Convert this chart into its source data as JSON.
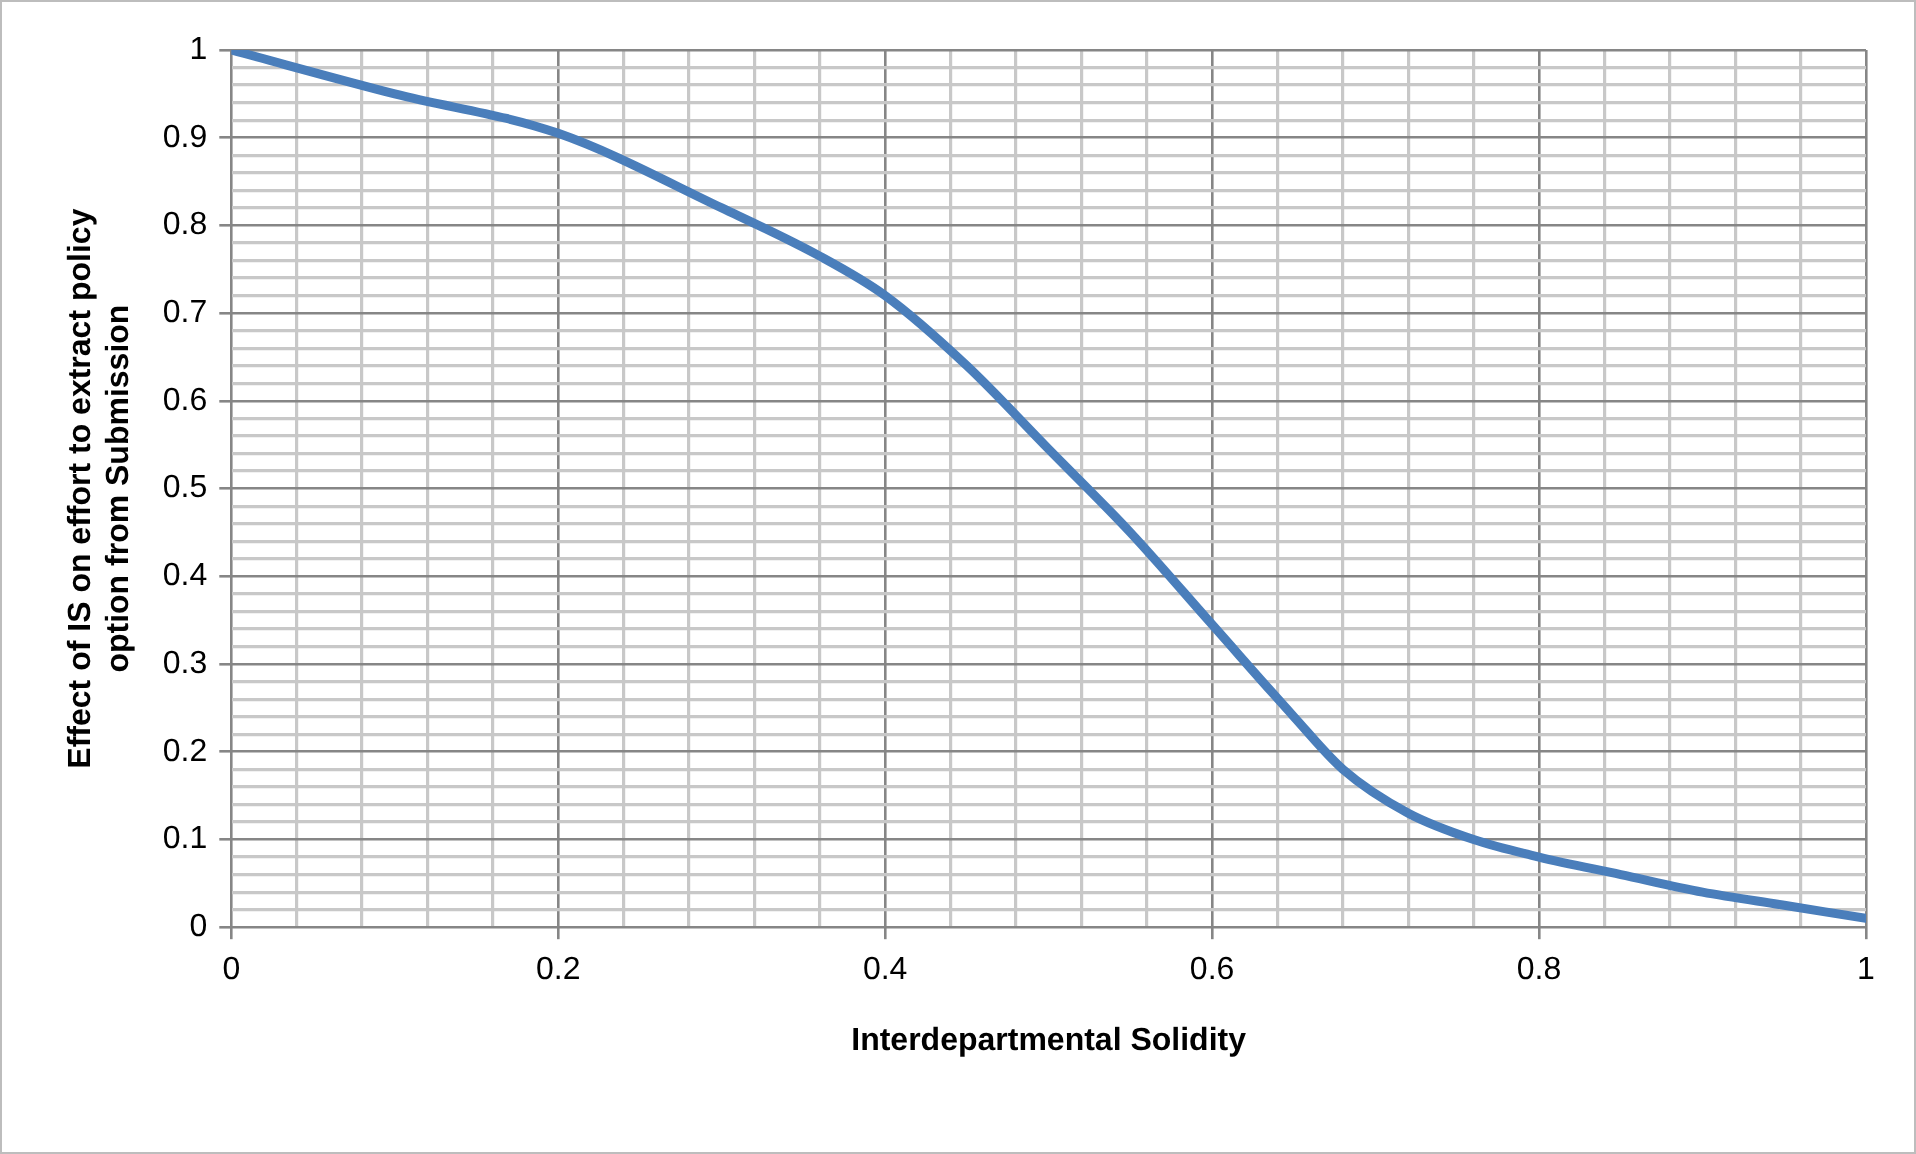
{
  "chart_data": {
    "type": "line",
    "xlabel": "Interdepartmental Solidity",
    "ylabel": "Effect of IS on effort to extract policy\noption from Submission",
    "series": [
      {
        "color": "#4a7ebb",
        "x": [
          0,
          0.1,
          0.2,
          0.3,
          0.36,
          0.4,
          0.45,
          0.5,
          0.55,
          0.6,
          0.65,
          0.68,
          0.72,
          0.76,
          0.8,
          0.85,
          0.9,
          0.95,
          1
        ],
        "values": [
          1,
          0.95,
          0.905,
          0.82,
          0.765,
          0.72,
          0.64,
          0.545,
          0.45,
          0.345,
          0.24,
          0.18,
          0.13,
          0.1,
          0.08,
          0.06,
          0.04,
          0.025,
          0.01
        ]
      }
    ],
    "xlim": [
      0,
      1
    ],
    "ylim": [
      0,
      1
    ],
    "xticks": [
      0,
      {
        "value": 0.04,
        "label": null
      },
      {
        "value": 0.08,
        "label": null
      },
      {
        "value": 0.12,
        "label": null
      },
      {
        "value": 0.16,
        "label": null
      },
      0.2,
      {
        "value": 0.24,
        "label": null
      },
      {
        "value": 0.28,
        "label": null
      },
      {
        "value": 0.32,
        "label": null
      },
      {
        "value": 0.36,
        "label": null
      },
      0.4,
      {
        "value": 0.44,
        "label": null
      },
      {
        "value": 0.48,
        "label": null
      },
      {
        "value": 0.52,
        "label": null
      },
      {
        "value": 0.56,
        "label": null
      },
      0.6,
      {
        "value": 0.64,
        "label": null
      },
      {
        "value": 0.68,
        "label": null
      },
      {
        "value": 0.72,
        "label": null
      },
      {
        "value": 0.76,
        "label": null
      },
      0.8,
      {
        "value": 0.84,
        "label": null
      },
      {
        "value": 0.88,
        "label": null
      },
      {
        "value": 0.92,
        "label": null
      },
      {
        "value": 0.96,
        "label": null
      },
      1
    ],
    "yticks": [
      0,
      {
        "value": 0.02,
        "label": null
      },
      {
        "value": 0.04,
        "label": null
      },
      {
        "value": 0.06,
        "label": null
      },
      {
        "value": 0.08,
        "label": null
      },
      0.1,
      {
        "value": 0.12,
        "label": null
      },
      {
        "value": 0.14,
        "label": null
      },
      {
        "value": 0.16,
        "label": null
      },
      {
        "value": 0.18,
        "label": null
      },
      0.2,
      {
        "value": 0.22,
        "label": null
      },
      {
        "value": 0.24,
        "label": null
      },
      {
        "value": 0.26,
        "label": null
      },
      {
        "value": 0.28,
        "label": null
      },
      0.3,
      {
        "value": 0.32,
        "label": null
      },
      {
        "value": 0.34,
        "label": null
      },
      {
        "value": 0.36,
        "label": null
      },
      {
        "value": 0.38,
        "label": null
      },
      0.4,
      {
        "value": 0.42,
        "label": null
      },
      {
        "value": 0.44,
        "label": null
      },
      {
        "value": 0.46,
        "label": null
      },
      {
        "value": 0.48,
        "label": null
      },
      0.5,
      {
        "value": 0.52,
        "label": null
      },
      {
        "value": 0.54,
        "label": null
      },
      {
        "value": 0.56,
        "label": null
      },
      {
        "value": 0.58,
        "label": null
      },
      0.6,
      {
        "value": 0.62,
        "label": null
      },
      {
        "value": 0.64,
        "label": null
      },
      {
        "value": 0.66,
        "label": null
      },
      {
        "value": 0.68,
        "label": null
      },
      0.7,
      {
        "value": 0.72,
        "label": null
      },
      {
        "value": 0.74,
        "label": null
      },
      {
        "value": 0.76,
        "label": null
      },
      {
        "value": 0.78,
        "label": null
      },
      0.8,
      {
        "value": 0.82,
        "label": null
      },
      {
        "value": 0.84,
        "label": null
      },
      {
        "value": 0.86,
        "label": null
      },
      {
        "value": 0.88,
        "label": null
      },
      0.9,
      {
        "value": 0.92,
        "label": null
      },
      {
        "value": 0.94,
        "label": null
      },
      {
        "value": 0.96,
        "label": null
      },
      {
        "value": 0.98,
        "label": null
      },
      1
    ],
    "grid": true,
    "marker": "none",
    "line_style": "solid"
  }
}
